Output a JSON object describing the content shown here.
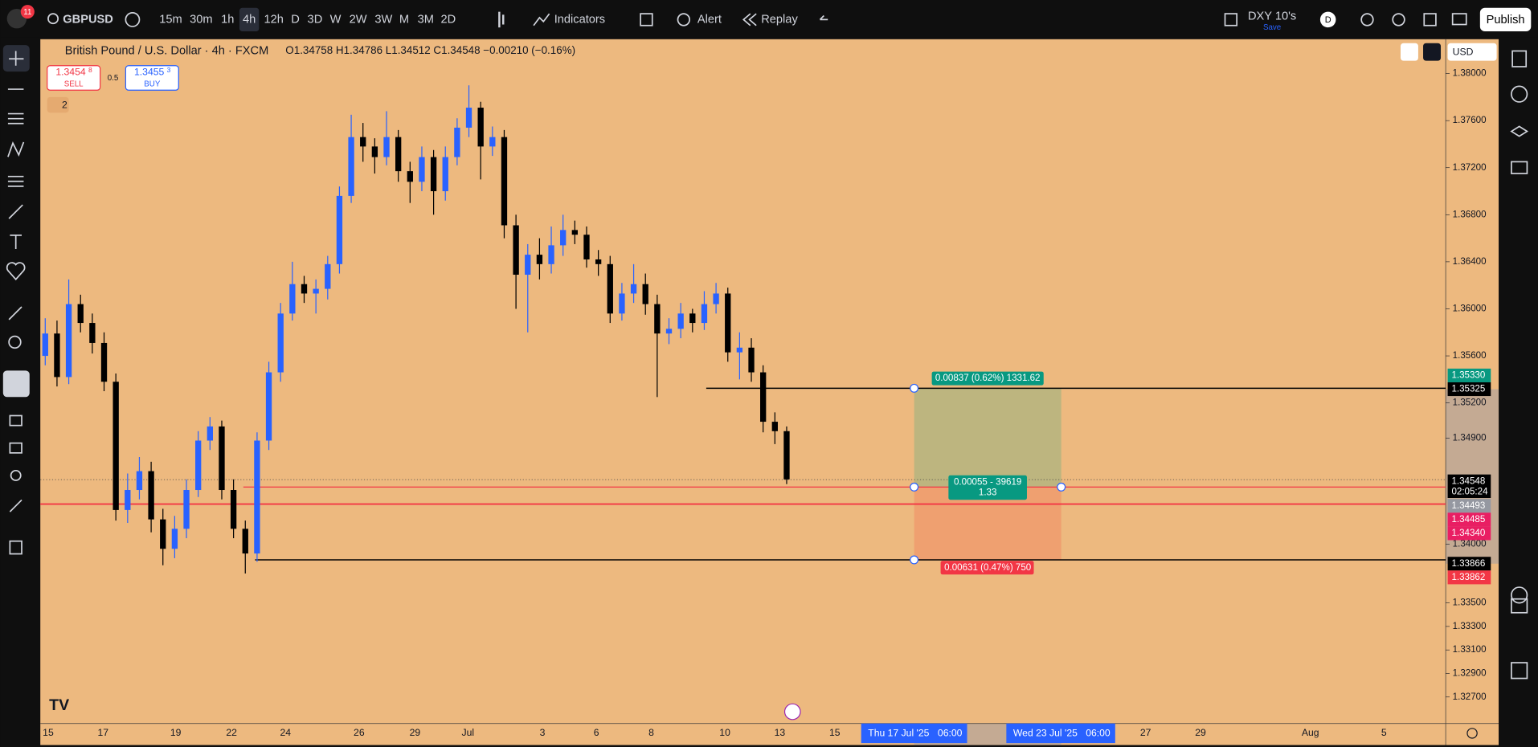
{
  "topbar": {
    "badge": "11",
    "symbol": "GBPUSD",
    "timeframes": [
      "15m",
      "30m",
      "1h",
      "4h",
      "12h",
      "D",
      "3D",
      "W",
      "2W",
      "3W",
      "M",
      "3M",
      "2D"
    ],
    "indicators": "Indicators",
    "alert": "Alert",
    "replay": "Replay",
    "layout_name": "DXY 10's",
    "layout_status": "Save",
    "avatar": "D",
    "publish": "Publish"
  },
  "legend": {
    "title": "British Pound / U.S. Dollar · 4h · FXCM",
    "ohlc": "O1.34758 H1.34786 L1.34512 C1.34548 −0.00210 (−0.16%)",
    "sell": {
      "price": "1.3454",
      "pip": "8",
      "label": "SELL"
    },
    "spread": "0.5",
    "buy": {
      "price": "1.3455",
      "pip": "3",
      "label": "BUY"
    },
    "indicator_count": "2"
  },
  "currency": "USD",
  "chart_data": {
    "type": "candlestick",
    "colors": {
      "up": "#2962ff",
      "down": "#000000",
      "background": "#edb97f"
    },
    "ylim": [
      1.32475,
      1.38292
    ],
    "yticks": [
      {
        "value": 1.38,
        "label": "1.38000"
      },
      {
        "value": 1.376,
        "label": "1.37600"
      },
      {
        "value": 1.372,
        "label": "1.37200"
      },
      {
        "value": 1.368,
        "label": "1.36800"
      },
      {
        "value": 1.364,
        "label": "1.36400"
      },
      {
        "value": 1.36,
        "label": "1.36000"
      },
      {
        "value": 1.356,
        "label": "1.35600"
      },
      {
        "value": 1.352,
        "label": "1.35200"
      },
      {
        "value": 1.349,
        "label": "1.34900"
      },
      {
        "value": 1.34,
        "label": "1.34000"
      },
      {
        "value": 1.335,
        "label": "1.33500"
      },
      {
        "value": 1.333,
        "label": "1.33300"
      },
      {
        "value": 1.331,
        "label": "1.33100"
      },
      {
        "value": 1.329,
        "label": "1.32900"
      },
      {
        "value": 1.327,
        "label": "1.32700"
      }
    ],
    "xtick_labels": [
      "15",
      "17",
      "19",
      "22",
      "24",
      "26",
      "29",
      "Jul",
      "3",
      "6",
      "8",
      "10",
      "13",
      "15",
      "27",
      "29",
      "Aug",
      "5"
    ],
    "range_start": {
      "date": "Thu 17 Jul '25",
      "time": "06:00"
    },
    "range_end": {
      "date": "Wed 23 Jul '25",
      "time": "06:00"
    },
    "countdown": "02:05:24",
    "axis_labels": [
      {
        "value": 1.3533,
        "label": "1.35330",
        "color": "#089981"
      },
      {
        "value": 1.35325,
        "label": "1.35325",
        "color": "#000000"
      },
      {
        "value": 1.34548,
        "label": "1.34548",
        "color": "#000000"
      },
      {
        "value": 1.34493,
        "label": "1.34493",
        "color": "#9598a1"
      },
      {
        "value": 1.34485,
        "label": "1.34485",
        "color": "#e91e63"
      },
      {
        "value": 1.3434,
        "label": "1.34340",
        "color": "#e91e63"
      },
      {
        "value": 1.33866,
        "label": "1.33866",
        "color": "#000000"
      },
      {
        "value": 1.33862,
        "label": "1.33862",
        "color": "#f23645"
      }
    ],
    "position": {
      "target": "0.00837 (0.62%) 1331.62",
      "entry": "0.00055 - 39619",
      "ratio": "1.33",
      "stop": "0.00631 (0.47%) 750"
    },
    "candles": [
      [
        1.356,
        1.3592,
        1.3552,
        1.3579
      ],
      [
        1.3579,
        1.359,
        1.3534,
        1.3542
      ],
      [
        1.3542,
        1.3625,
        1.3536,
        1.3604
      ],
      [
        1.3604,
        1.3612,
        1.358,
        1.3588
      ],
      [
        1.3588,
        1.3596,
        1.3562,
        1.3571
      ],
      [
        1.3571,
        1.358,
        1.353,
        1.3538
      ],
      [
        1.3538,
        1.3545,
        1.342,
        1.3429
      ],
      [
        1.3429,
        1.346,
        1.3418,
        1.3446
      ],
      [
        1.3446,
        1.3474,
        1.3438,
        1.3462
      ],
      [
        1.3462,
        1.347,
        1.341,
        1.3421
      ],
      [
        1.3421,
        1.343,
        1.3382,
        1.3396
      ],
      [
        1.3396,
        1.3424,
        1.3388,
        1.3413
      ],
      [
        1.3413,
        1.3455,
        1.3405,
        1.3446
      ],
      [
        1.3446,
        1.3496,
        1.344,
        1.3488
      ],
      [
        1.3488,
        1.3508,
        1.348,
        1.35
      ],
      [
        1.35,
        1.3505,
        1.3438,
        1.3446
      ],
      [
        1.3446,
        1.3455,
        1.3405,
        1.3413
      ],
      [
        1.3413,
        1.342,
        1.3375,
        1.3392
      ],
      [
        1.3392,
        1.3495,
        1.3385,
        1.3488
      ],
      [
        1.3488,
        1.3555,
        1.348,
        1.3546
      ],
      [
        1.3546,
        1.3605,
        1.3538,
        1.3596
      ],
      [
        1.3596,
        1.364,
        1.359,
        1.3621
      ],
      [
        1.3621,
        1.3628,
        1.3605,
        1.3613
      ],
      [
        1.3613,
        1.3625,
        1.3596,
        1.3617
      ],
      [
        1.3617,
        1.3645,
        1.3608,
        1.3638
      ],
      [
        1.3638,
        1.3704,
        1.363,
        1.3696
      ],
      [
        1.3696,
        1.3765,
        1.369,
        1.3746
      ],
      [
        1.3746,
        1.3758,
        1.3725,
        1.3738
      ],
      [
        1.3738,
        1.3745,
        1.3715,
        1.3729
      ],
      [
        1.3729,
        1.3768,
        1.3722,
        1.3746
      ],
      [
        1.3746,
        1.3752,
        1.3708,
        1.3717
      ],
      [
        1.3717,
        1.3725,
        1.369,
        1.3708
      ],
      [
        1.3708,
        1.3738,
        1.37,
        1.3729
      ],
      [
        1.3729,
        1.3735,
        1.368,
        1.37
      ],
      [
        1.37,
        1.3738,
        1.3692,
        1.3729
      ],
      [
        1.3729,
        1.3762,
        1.3722,
        1.3754
      ],
      [
        1.3754,
        1.379,
        1.3746,
        1.3771
      ],
      [
        1.3771,
        1.3776,
        1.371,
        1.3738
      ],
      [
        1.3738,
        1.3755,
        1.373,
        1.3746
      ],
      [
        1.3746,
        1.3752,
        1.366,
        1.3671
      ],
      [
        1.3671,
        1.368,
        1.36,
        1.3629
      ],
      [
        1.3629,
        1.3655,
        1.358,
        1.3646
      ],
      [
        1.3646,
        1.366,
        1.3625,
        1.3638
      ],
      [
        1.3638,
        1.367,
        1.363,
        1.3654
      ],
      [
        1.3654,
        1.368,
        1.3645,
        1.3667
      ],
      [
        1.3667,
        1.3675,
        1.3655,
        1.3663
      ],
      [
        1.3663,
        1.367,
        1.3635,
        1.3642
      ],
      [
        1.3642,
        1.365,
        1.3628,
        1.3638
      ],
      [
        1.3638,
        1.3645,
        1.3588,
        1.3596
      ],
      [
        1.3596,
        1.3622,
        1.359,
        1.3613
      ],
      [
        1.3613,
        1.3638,
        1.3605,
        1.3621
      ],
      [
        1.3621,
        1.363,
        1.3595,
        1.3604
      ],
      [
        1.3604,
        1.3612,
        1.3525,
        1.3579
      ],
      [
        1.3579,
        1.3592,
        1.357,
        1.3583
      ],
      [
        1.3583,
        1.3605,
        1.3575,
        1.3596
      ],
      [
        1.3596,
        1.36,
        1.358,
        1.3588
      ],
      [
        1.3588,
        1.3615,
        1.3582,
        1.3604
      ],
      [
        1.3604,
        1.3622,
        1.3596,
        1.3613
      ],
      [
        1.3613,
        1.3618,
        1.3555,
        1.3563
      ],
      [
        1.3563,
        1.358,
        1.354,
        1.3567
      ],
      [
        1.3567,
        1.3575,
        1.3538,
        1.3546
      ],
      [
        1.3546,
        1.3552,
        1.3495,
        1.3504
      ],
      [
        1.3504,
        1.3512,
        1.3485,
        1.3496
      ],
      [
        1.3496,
        1.35,
        1.3451,
        1.3455
      ]
    ]
  }
}
